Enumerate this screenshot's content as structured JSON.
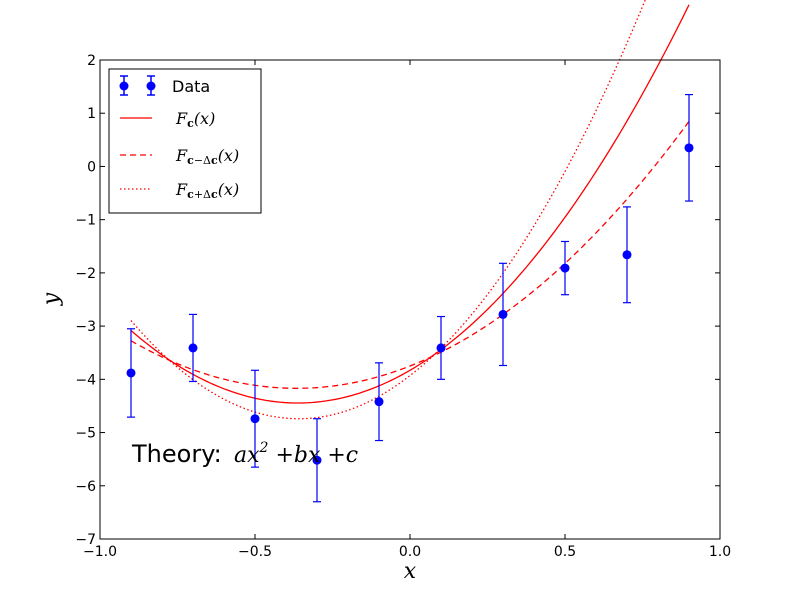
{
  "chart_data": {
    "type": "line",
    "xlabel": "x",
    "ylabel": "y",
    "xlim": [
      -1.0,
      1.0
    ],
    "ylim": [
      -7,
      2
    ],
    "xticks": [
      -1.0,
      -0.5,
      0.0,
      0.5,
      1.0
    ],
    "xtick_labels": [
      "−1.0",
      "−0.5",
      "0.0",
      "0.5",
      "1.0"
    ],
    "yticks": [
      -7,
      -6,
      -5,
      -4,
      -3,
      -2,
      -1,
      0,
      1,
      2
    ],
    "ytick_labels": [
      "−7",
      "−6",
      "−5",
      "−4",
      "−3",
      "−2",
      "−1",
      "0",
      "1",
      "2"
    ],
    "grid": false,
    "legend_position": "top-left",
    "series": [
      {
        "name": "Data",
        "kind": "errorbar",
        "color": "#0000ff",
        "x": [
          -0.9,
          -0.7,
          -0.5,
          -0.3,
          -0.1,
          0.1,
          0.3,
          0.5,
          0.7,
          0.9
        ],
        "y": [
          -3.88,
          -3.41,
          -4.74,
          -5.52,
          -4.42,
          -3.41,
          -2.78,
          -1.91,
          -1.66,
          0.35
        ],
        "yerr": [
          0.83,
          0.63,
          0.91,
          0.78,
          0.73,
          0.59,
          0.96,
          0.5,
          0.9,
          1.0
        ]
      },
      {
        "name": "F_c(x)",
        "legend_label": "Fc(x)",
        "kind": "curve",
        "style": "solid",
        "color": "#ff0000",
        "coeffs": [
          4.7,
          3.4,
          -3.83
        ],
        "x_range": [
          -0.9,
          0.9
        ]
      },
      {
        "name": "F_{c-Δc}(x)",
        "legend_label": "Fc−Δc(x)",
        "kind": "curve",
        "style": "dashed",
        "color": "#ff0000",
        "coeffs": [
          3.13,
          2.29,
          -3.75
        ],
        "x_range": [
          -0.9,
          0.9
        ]
      },
      {
        "name": "F_{c+Δc}(x)",
        "legend_label": "Fc+Δc(x)",
        "kind": "curve",
        "style": "dotted",
        "color": "#ff0000",
        "coeffs": [
          6.3,
          4.52,
          -3.93
        ],
        "x_range": [
          -0.9,
          0.9
        ]
      }
    ],
    "annotation": {
      "prefix": "Theory: ",
      "formula": "ax² +bx +c",
      "x": -0.88,
      "y": -5.5
    }
  }
}
